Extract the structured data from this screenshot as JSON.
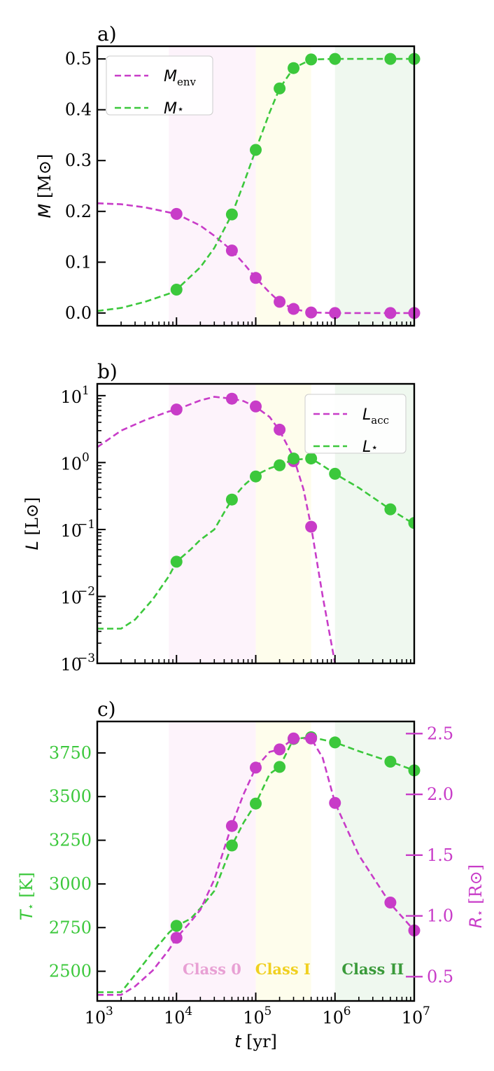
{
  "colors": {
    "magenta": "#c83cc8",
    "green": "#3cc83c",
    "class0_bg": "#fdf3fb",
    "classI_bg": "#fefdec",
    "classII_bg": "#eff8ef",
    "class0_text": "#e8a0d4",
    "classI_text": "#f0d020",
    "classII_text": "#3a9a3a"
  },
  "chart_data": [
    {
      "type": "line",
      "panel_label": "a)",
      "x_scale": "log",
      "xlim": [
        1000,
        10000000
      ],
      "ylim": [
        -0.025,
        0.525
      ],
      "ylabel_sym": "M",
      "ylabel_unit": "[M⊙]",
      "yticks": [
        0.0,
        0.1,
        0.2,
        0.3,
        0.4,
        0.5
      ],
      "ytick_labels": [
        "0.0",
        "0.1",
        "0.2",
        "0.3",
        "0.4",
        "0.5"
      ],
      "legend": {
        "position": "upper-left",
        "entries": [
          {
            "sym": "M",
            "sub": "env",
            "color": "magenta"
          },
          {
            "sym": "M",
            "sub": "⋆",
            "color": "green"
          }
        ]
      },
      "series": [
        {
          "name": "Menv",
          "color": "magenta",
          "line_x": [
            1000,
            2000,
            4000,
            8000,
            10000,
            20000,
            30000,
            50000,
            70000,
            100000,
            150000,
            200000,
            300000,
            500000,
            1000000,
            10000000
          ],
          "line_y": [
            0.216,
            0.214,
            0.208,
            0.198,
            0.195,
            0.172,
            0.152,
            0.123,
            0.098,
            0.069,
            0.04,
            0.022,
            0.008,
            0.001,
            0.0,
            0.0
          ],
          "points_x": [
            10000,
            50000,
            100000,
            200000,
            300000,
            500000,
            1000000,
            5000000,
            10000000
          ],
          "points_y": [
            0.195,
            0.123,
            0.069,
            0.022,
            0.008,
            0.001,
            0.0,
            0.0,
            0.0
          ]
        },
        {
          "name": "Mstar",
          "color": "green",
          "line_x": [
            1000,
            2000,
            4000,
            8000,
            10000,
            20000,
            30000,
            50000,
            70000,
            100000,
            150000,
            200000,
            300000,
            500000,
            1000000,
            10000000
          ],
          "line_y": [
            0.004,
            0.01,
            0.022,
            0.038,
            0.046,
            0.09,
            0.128,
            0.194,
            0.254,
            0.321,
            0.395,
            0.442,
            0.482,
            0.499,
            0.5,
            0.5
          ],
          "points_x": [
            10000,
            50000,
            100000,
            200000,
            300000,
            500000,
            1000000,
            5000000,
            10000000
          ],
          "points_y": [
            0.046,
            0.194,
            0.321,
            0.442,
            0.482,
            0.499,
            0.5,
            0.5,
            0.5
          ]
        }
      ]
    },
    {
      "type": "line",
      "panel_label": "b)",
      "x_scale": "log",
      "y_scale": "log",
      "xlim": [
        1000,
        10000000
      ],
      "ylim": [
        0.001,
        15
      ],
      "ylabel_sym": "L",
      "ylabel_unit": "[L⊙]",
      "yticks": [
        0.001,
        0.01,
        0.1,
        1,
        10
      ],
      "ytick_labels": [
        {
          "base": "10",
          "exp": "−3"
        },
        {
          "base": "10",
          "exp": "−2"
        },
        {
          "base": "10",
          "exp": "−1"
        },
        {
          "base": "10",
          "exp": "0"
        },
        {
          "base": "10",
          "exp": "1"
        }
      ],
      "legend": {
        "position": "upper-right",
        "entries": [
          {
            "sym": "L",
            "sub": "acc",
            "color": "magenta"
          },
          {
            "sym": "L",
            "sub": "⋆",
            "color": "green"
          }
        ]
      },
      "series": [
        {
          "name": "Lacc",
          "color": "magenta",
          "line_x": [
            1000,
            2000,
            4000,
            8000,
            10000,
            20000,
            30000,
            50000,
            70000,
            100000,
            150000,
            200000,
            300000,
            400000,
            500000,
            700000,
            1000000
          ],
          "line_y": [
            1.7,
            3.0,
            4.3,
            5.8,
            6.2,
            8.5,
            9.6,
            9.0,
            8.3,
            6.8,
            4.8,
            3.0,
            1.2,
            0.4,
            0.11,
            0.01,
            0.001
          ],
          "points_x": [
            10000,
            50000,
            100000,
            200000,
            300000,
            500000
          ],
          "points_y": [
            6.2,
            9.0,
            6.9,
            3.1,
            1.05,
            0.11
          ]
        },
        {
          "name": "Lstar",
          "color": "green",
          "line_x": [
            1000,
            2000,
            3000,
            5000,
            8000,
            10000,
            15000,
            20000,
            30000,
            40000,
            50000,
            70000,
            100000,
            150000,
            200000,
            300000,
            500000,
            700000,
            1000000,
            2000000,
            5000000,
            10000000
          ],
          "line_y": [
            0.0033,
            0.0033,
            0.0045,
            0.009,
            0.02,
            0.033,
            0.05,
            0.07,
            0.1,
            0.18,
            0.28,
            0.45,
            0.65,
            0.82,
            0.92,
            1.1,
            1.15,
            0.9,
            0.68,
            0.42,
            0.2,
            0.12
          ],
          "points_x": [
            10000,
            50000,
            100000,
            200000,
            300000,
            500000,
            1000000,
            5000000,
            10000000
          ],
          "points_y": [
            0.033,
            0.28,
            0.62,
            0.91,
            1.15,
            1.15,
            0.68,
            0.2,
            0.125
          ]
        }
      ]
    },
    {
      "type": "line",
      "panel_label": "c)",
      "x_scale": "log",
      "xlim": [
        1000,
        10000000
      ],
      "xticks": [
        1000,
        10000,
        100000,
        1000000,
        10000000
      ],
      "xtick_labels": [
        {
          "base": "10",
          "exp": "3"
        },
        {
          "base": "10",
          "exp": "4"
        },
        {
          "base": "10",
          "exp": "5"
        },
        {
          "base": "10",
          "exp": "6"
        },
        {
          "base": "10",
          "exp": "7"
        }
      ],
      "xlabel_sym": "t",
      "xlabel_unit": "[yr]",
      "ylim_left": [
        2330,
        3930
      ],
      "yticks_left": [
        2500,
        2750,
        3000,
        3250,
        3500,
        3750
      ],
      "ytick_labels_left": [
        "2500",
        "2750",
        "3000",
        "3250",
        "3500",
        "3750"
      ],
      "ylabel_left_sym": "T",
      "ylabel_left_sub": "⋆",
      "ylabel_left_unit": "[K]",
      "ylim_right": [
        0.3,
        2.6
      ],
      "yticks_right": [
        0.5,
        1.0,
        1.5,
        2.0,
        2.5
      ],
      "ytick_labels_right": [
        "0.5",
        "1.0",
        "1.5",
        "2.0",
        "2.5"
      ],
      "ylabel_right_sym": "R",
      "ylabel_right_sub": "⋆",
      "ylabel_right_unit": "[R⊙]",
      "class_labels": [
        "Class 0",
        "Class I",
        "Class II"
      ],
      "series": [
        {
          "name": "Tstar",
          "color": "green",
          "axis": "left",
          "line_x": [
            1000,
            2000,
            3000,
            5000,
            8000,
            10000,
            15000,
            20000,
            30000,
            50000,
            70000,
            100000,
            150000,
            200000,
            300000,
            500000,
            1000000,
            2000000,
            5000000,
            10000000
          ],
          "line_y": [
            2380,
            2380,
            2480,
            2610,
            2720,
            2760,
            2800,
            2860,
            2960,
            3220,
            3350,
            3460,
            3630,
            3670,
            3830,
            3840,
            3810,
            3760,
            3700,
            3650
          ],
          "points_x": [
            10000,
            50000,
            100000,
            200000,
            300000,
            500000,
            1000000,
            5000000,
            10000000
          ],
          "points_y": [
            2760,
            3220,
            3460,
            3670,
            3830,
            3840,
            3810,
            3700,
            3650
          ]
        },
        {
          "name": "Rstar",
          "color": "magenta",
          "axis": "right",
          "line_x": [
            1000,
            2000,
            3000,
            5000,
            8000,
            10000,
            15000,
            20000,
            30000,
            50000,
            70000,
            100000,
            150000,
            200000,
            300000,
            500000,
            700000,
            1000000,
            2000000,
            5000000,
            10000000
          ],
          "line_y": [
            0.35,
            0.35,
            0.42,
            0.55,
            0.72,
            0.82,
            0.95,
            1.05,
            1.3,
            1.75,
            2.0,
            2.22,
            2.35,
            2.37,
            2.46,
            2.46,
            2.3,
            1.93,
            1.5,
            1.1,
            0.88
          ],
          "points_x": [
            10000,
            50000,
            100000,
            200000,
            300000,
            500000,
            1000000,
            5000000,
            10000000
          ],
          "points_y": [
            0.82,
            1.74,
            2.22,
            2.37,
            2.46,
            2.46,
            1.93,
            1.11,
            0.88
          ]
        }
      ]
    }
  ]
}
